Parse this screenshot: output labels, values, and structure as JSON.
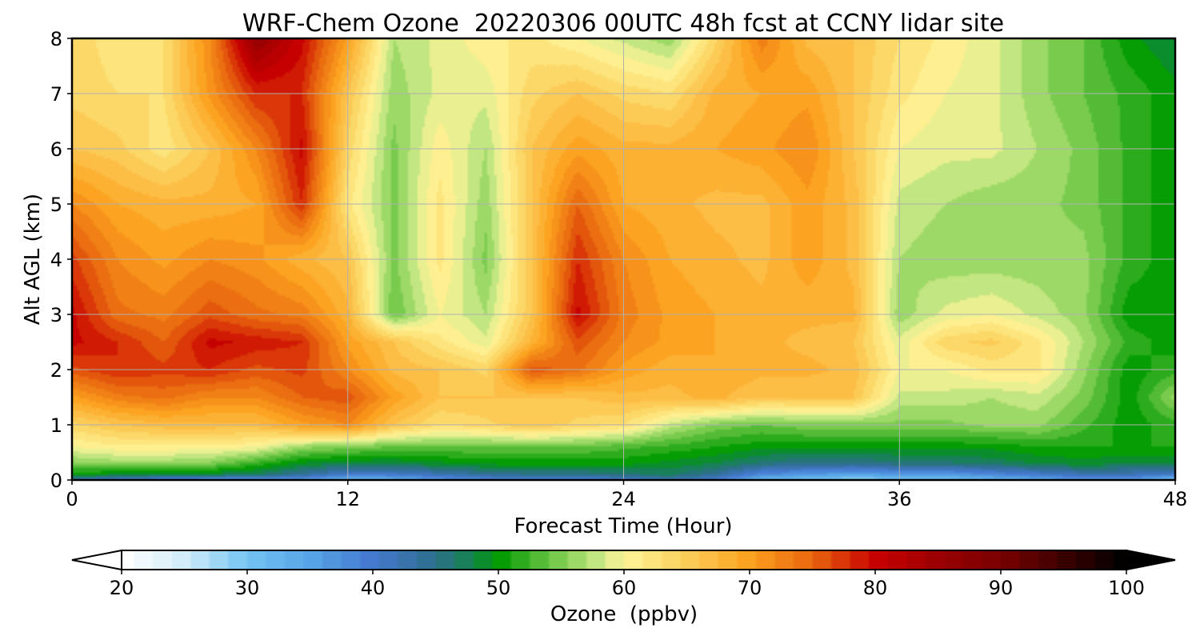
{
  "chart_data": {
    "type": "heatmap",
    "title": "WRF-Chem Ozone  20220306 00UTC 48h fcst at CCNY lidar site",
    "xlabel": "Forecast Time (Hour)",
    "ylabel": "Alt AGL (km)",
    "xlim": [
      0,
      48
    ],
    "ylim": [
      0,
      8
    ],
    "xticks": [
      0,
      12,
      24,
      36,
      48
    ],
    "yticks": [
      0,
      1,
      2,
      3,
      4,
      5,
      6,
      7,
      8
    ],
    "grid": true,
    "colorbar": {
      "label": "Ozone  (ppbv)",
      "range": [
        20,
        100
      ],
      "ticks": [
        20,
        30,
        40,
        50,
        60,
        70,
        80,
        90,
        100
      ],
      "extend": "both",
      "colormap": [
        {
          "v": 20,
          "c": "#ffffff"
        },
        {
          "v": 25,
          "c": "#d2ecfa"
        },
        {
          "v": 30,
          "c": "#73c4f2"
        },
        {
          "v": 35,
          "c": "#57a5e6"
        },
        {
          "v": 40,
          "c": "#4578cf"
        },
        {
          "v": 45,
          "c": "#2e6e8c"
        },
        {
          "v": 48,
          "c": "#12864a"
        },
        {
          "v": 50,
          "c": "#009900"
        },
        {
          "v": 55,
          "c": "#7fce52"
        },
        {
          "v": 58,
          "c": "#c8e885"
        },
        {
          "v": 60,
          "c": "#fff59a"
        },
        {
          "v": 64,
          "c": "#fcd665"
        },
        {
          "v": 70,
          "c": "#fca21f"
        },
        {
          "v": 75,
          "c": "#e8660f"
        },
        {
          "v": 80,
          "c": "#c80000"
        },
        {
          "v": 85,
          "c": "#9b0000"
        },
        {
          "v": 90,
          "c": "#7a0000"
        },
        {
          "v": 95,
          "c": "#3a0000"
        },
        {
          "v": 100,
          "c": "#000000"
        }
      ]
    },
    "x": [
      0,
      2,
      4,
      6,
      8,
      10,
      12,
      14,
      16,
      18,
      20,
      22,
      24,
      26,
      28,
      30,
      32,
      34,
      36,
      38,
      40,
      42,
      44,
      46,
      48
    ],
    "y": [
      0,
      0.1,
      0.3,
      0.6,
      1,
      1.5,
      2,
      2.5,
      3,
      4,
      5,
      6,
      7,
      8
    ],
    "z": [
      [
        42,
        40,
        38,
        36,
        35,
        36,
        32,
        33,
        36,
        38,
        38,
        38,
        40,
        42,
        40,
        32,
        30,
        28,
        29,
        30,
        32,
        34,
        36,
        36,
        30
      ],
      [
        50,
        49,
        48,
        48,
        47,
        44,
        40,
        40,
        42,
        44,
        45,
        45,
        46,
        47,
        44,
        38,
        36,
        35,
        36,
        36,
        38,
        40,
        42,
        42,
        40
      ],
      [
        55,
        56,
        56,
        55,
        52,
        49,
        48,
        48,
        49,
        50,
        50,
        50,
        50,
        49,
        48,
        46,
        45,
        45,
        46,
        46,
        47,
        48,
        49,
        48,
        48
      ],
      [
        60,
        61,
        61,
        61,
        60,
        56,
        55,
        54,
        54,
        54,
        54,
        54,
        53,
        52,
        51,
        50,
        50,
        50,
        50,
        50,
        50,
        51,
        51,
        51,
        51
      ],
      [
        64,
        66,
        67,
        67,
        67,
        70,
        72,
        66,
        63,
        64,
        66,
        64,
        63,
        58,
        55,
        54,
        55,
        55,
        55,
        55,
        56,
        56,
        53,
        50,
        52
      ],
      [
        70,
        73,
        74,
        72,
        72,
        75,
        76,
        70,
        66,
        66,
        66,
        66,
        67,
        67,
        68,
        66,
        66,
        66,
        58,
        58,
        57,
        58,
        55,
        50,
        56
      ],
      [
        76,
        78,
        77,
        78,
        76,
        77,
        72,
        67,
        66,
        64,
        76,
        74,
        70,
        68,
        69,
        68,
        68,
        67,
        60,
        60,
        62,
        62,
        56,
        50,
        52
      ],
      [
        80,
        78,
        75,
        80,
        79,
        78,
        70,
        66,
        62,
        59,
        68,
        76,
        72,
        70,
        69,
        68,
        67,
        66,
        59,
        64,
        65,
        62,
        57,
        52,
        50
      ],
      [
        80,
        74,
        73,
        76,
        74,
        73,
        68,
        54,
        60,
        57,
        66,
        80,
        73,
        70,
        69,
        68,
        68,
        68,
        56,
        59,
        60,
        58,
        56,
        50,
        50
      ],
      [
        77,
        72,
        70,
        72,
        71,
        68,
        66,
        55,
        62,
        55,
        66,
        78,
        72,
        69,
        68,
        67,
        70,
        67,
        57,
        56,
        56,
        56,
        56,
        52,
        50
      ],
      [
        72,
        69,
        68,
        68,
        69,
        78,
        62,
        55,
        62,
        56,
        66,
        75,
        69,
        68,
        67,
        67,
        70,
        67,
        58,
        57,
        56,
        56,
        55,
        52,
        50
      ],
      [
        66,
        65,
        62,
        66,
        72,
        80,
        64,
        55,
        61,
        57,
        66,
        70,
        68,
        68,
        69,
        70,
        72,
        66,
        60,
        59,
        59,
        57,
        55,
        52,
        50
      ],
      [
        64,
        63,
        63,
        71,
        78,
        78,
        66,
        56,
        59,
        59,
        64,
        66,
        64,
        63,
        68,
        69,
        70,
        66,
        62,
        60,
        59,
        56,
        54,
        52,
        50
      ],
      [
        64,
        62,
        63,
        72,
        86,
        80,
        70,
        57,
        59,
        61,
        62,
        60,
        58,
        56,
        64,
        73,
        67,
        66,
        63,
        61,
        59,
        56,
        54,
        50,
        48
      ]
    ]
  }
}
